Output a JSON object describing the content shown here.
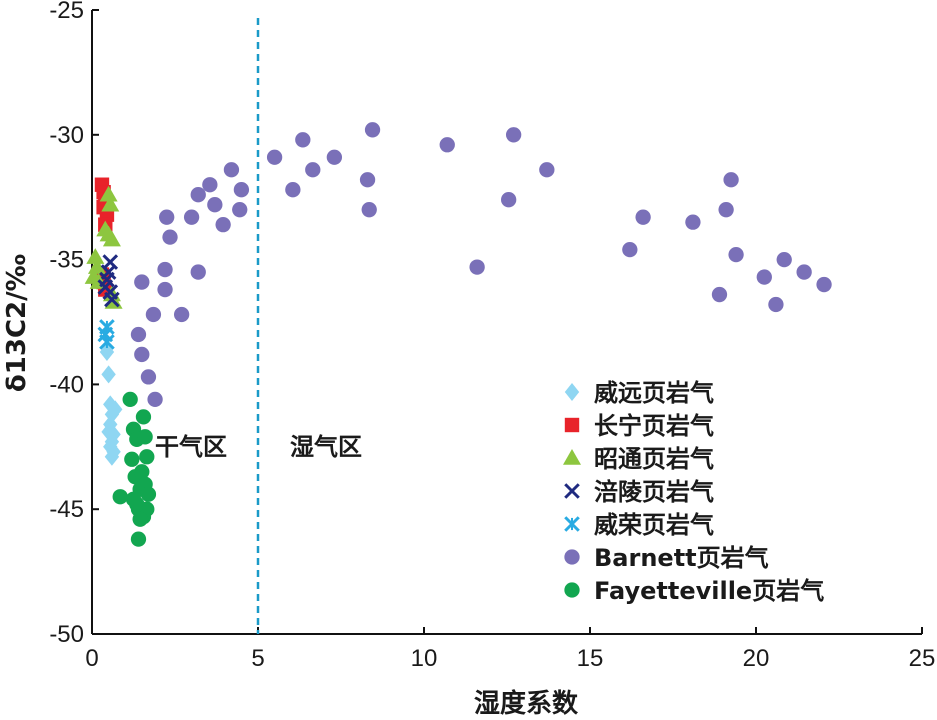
{
  "chart_data": {
    "type": "scatter",
    "xlabel": "湿度系数",
    "ylabel": "δ13C2/‰",
    "xlim": [
      0,
      25
    ],
    "ylim": [
      -50,
      -25
    ],
    "x_ticks": [
      "0",
      "5",
      "10",
      "15",
      "20",
      "25"
    ],
    "y_ticks": [
      "-25",
      "-30",
      "-35",
      "-40",
      "-45",
      "-50"
    ],
    "grid": false,
    "legend_position": "bottom-right",
    "reference_line": {
      "x": 5,
      "style": "dashed",
      "color": "#1a9ac8"
    },
    "region_labels": {
      "dry": "干气区",
      "wet": "湿气区"
    },
    "series": [
      {
        "name": "威远页岩气",
        "marker": "diamond",
        "color": "#8fd6f2",
        "points": [
          [
            0.45,
            -38.7
          ],
          [
            0.5,
            -39.6
          ],
          [
            0.55,
            -40.8
          ],
          [
            0.6,
            -41.2
          ],
          [
            0.55,
            -41.6
          ],
          [
            0.65,
            -42.0
          ],
          [
            0.6,
            -42.3
          ],
          [
            0.55,
            -42.5
          ],
          [
            0.65,
            -42.7
          ],
          [
            0.6,
            -42.9
          ],
          [
            0.7,
            -41.0
          ],
          [
            0.5,
            -41.9
          ]
        ]
      },
      {
        "name": "长宁页岩气",
        "marker": "square",
        "color": "#e8232a",
        "points": [
          [
            0.3,
            -32.0
          ],
          [
            0.35,
            -32.3
          ],
          [
            0.4,
            -32.6
          ],
          [
            0.35,
            -32.9
          ],
          [
            0.45,
            -33.2
          ],
          [
            0.4,
            -33.6
          ],
          [
            0.3,
            -35.6
          ],
          [
            0.35,
            -35.9
          ],
          [
            0.4,
            -36.2
          ]
        ]
      },
      {
        "name": "昭通页岩气",
        "marker": "triangle",
        "color": "#8dc63f",
        "points": [
          [
            0.5,
            -32.4
          ],
          [
            0.55,
            -32.8
          ],
          [
            0.4,
            -33.8
          ],
          [
            0.5,
            -34.0
          ],
          [
            0.6,
            -34.2
          ],
          [
            0.1,
            -34.9
          ],
          [
            0.15,
            -35.3
          ],
          [
            0.05,
            -35.7
          ],
          [
            0.2,
            -35.9
          ],
          [
            0.6,
            -36.4
          ],
          [
            0.65,
            -36.7
          ]
        ]
      },
      {
        "name": "涪陵页岩气",
        "marker": "x",
        "color": "#1f2a80",
        "points": [
          [
            0.55,
            -35.1
          ],
          [
            0.5,
            -35.5
          ],
          [
            0.45,
            -35.8
          ],
          [
            0.4,
            -36.1
          ],
          [
            0.55,
            -36.3
          ],
          [
            0.6,
            -36.6
          ]
        ]
      },
      {
        "name": "威荣页岩气",
        "marker": "star",
        "color": "#29abe2",
        "points": [
          [
            0.45,
            -37.7
          ],
          [
            0.4,
            -38.0
          ],
          [
            0.45,
            -38.3
          ]
        ]
      },
      {
        "name": "Barnett页岩气",
        "marker": "circle",
        "color": "#7a70b8",
        "points": [
          [
            1.4,
            -38.0
          ],
          [
            1.5,
            -38.8
          ],
          [
            1.7,
            -39.7
          ],
          [
            1.9,
            -40.6
          ],
          [
            1.5,
            -35.9
          ],
          [
            1.85,
            -37.2
          ],
          [
            2.2,
            -36.2
          ],
          [
            2.2,
            -35.4
          ],
          [
            2.35,
            -34.1
          ],
          [
            2.25,
            -33.3
          ],
          [
            2.7,
            -37.2
          ],
          [
            3.0,
            -33.3
          ],
          [
            3.2,
            -32.4
          ],
          [
            3.2,
            -35.5
          ],
          [
            3.55,
            -32.0
          ],
          [
            3.7,
            -32.8
          ],
          [
            3.95,
            -33.6
          ],
          [
            4.2,
            -31.4
          ],
          [
            4.45,
            -33.0
          ],
          [
            4.5,
            -32.2
          ],
          [
            5.5,
            -30.9
          ],
          [
            6.05,
            -32.2
          ],
          [
            6.35,
            -30.2
          ],
          [
            6.65,
            -31.4
          ],
          [
            7.3,
            -30.9
          ],
          [
            8.3,
            -31.8
          ],
          [
            8.35,
            -33.0
          ],
          [
            8.45,
            -29.8
          ],
          [
            10.7,
            -30.4
          ],
          [
            11.6,
            -35.3
          ],
          [
            12.55,
            -32.6
          ],
          [
            12.7,
            -30.0
          ],
          [
            13.7,
            -31.4
          ],
          [
            16.2,
            -34.6
          ],
          [
            16.6,
            -33.3
          ],
          [
            18.1,
            -33.5
          ],
          [
            18.9,
            -36.4
          ],
          [
            19.1,
            -33.0
          ],
          [
            19.25,
            -31.8
          ],
          [
            19.4,
            -34.8
          ],
          [
            20.25,
            -35.7
          ],
          [
            20.6,
            -36.8
          ],
          [
            20.85,
            -35.0
          ],
          [
            21.45,
            -35.5
          ],
          [
            22.05,
            -36.0
          ]
        ]
      },
      {
        "name": "Fayetteville页岩气",
        "marker": "circle",
        "color": "#12a650",
        "points": [
          [
            0.85,
            -44.5
          ],
          [
            1.15,
            -40.6
          ],
          [
            1.25,
            -41.8
          ],
          [
            1.35,
            -42.2
          ],
          [
            1.2,
            -43.0
          ],
          [
            1.3,
            -43.7
          ],
          [
            1.45,
            -44.2
          ],
          [
            1.55,
            -41.3
          ],
          [
            1.6,
            -42.1
          ],
          [
            1.65,
            -42.9
          ],
          [
            1.5,
            -43.5
          ],
          [
            1.6,
            -44.0
          ],
          [
            1.25,
            -44.6
          ],
          [
            1.4,
            -45.0
          ],
          [
            1.55,
            -45.3
          ],
          [
            1.7,
            -44.4
          ],
          [
            1.65,
            -45.0
          ],
          [
            1.45,
            -45.4
          ],
          [
            1.4,
            -46.2
          ],
          [
            1.35,
            -44.8
          ]
        ]
      }
    ]
  }
}
